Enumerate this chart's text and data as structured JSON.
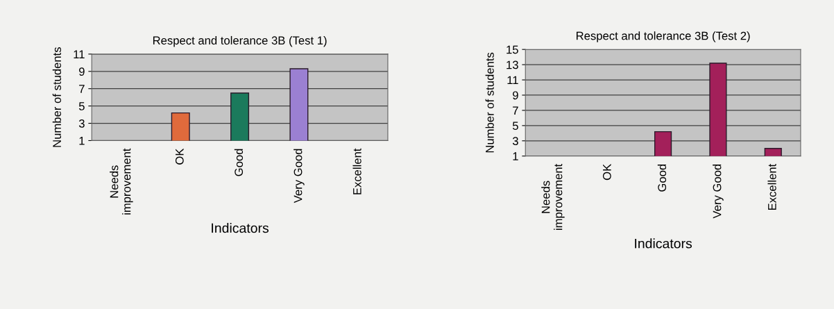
{
  "chart_data": [
    {
      "type": "bar",
      "title": "Respect and tolerance 3B (Test 1)",
      "xlabel": "Indicators",
      "ylabel": "Number of students",
      "categories": [
        "Needs\nimprovement",
        "OK",
        "Good",
        "Very Good",
        "Excellent"
      ],
      "values": [
        null,
        4.2,
        6.5,
        9.3,
        null
      ],
      "colors": [
        "#e06a3c",
        "#e06a3c",
        "#1b7a5c",
        "#9b80d2",
        "#9b80d2"
      ],
      "ylim": [
        1,
        11
      ],
      "yticks": [
        1,
        3,
        5,
        7,
        9,
        11
      ],
      "grid": "y",
      "legend": false
    },
    {
      "type": "bar",
      "title": "Respect and tolerance 3B (Test 2)",
      "xlabel": "Indicators",
      "ylabel": "Number of students",
      "categories": [
        "Needs\nimprovement",
        "OK",
        "Good",
        "Very Good",
        "Excellent"
      ],
      "values": [
        null,
        null,
        4.2,
        13.2,
        2
      ],
      "colors": [
        "#a3205a",
        "#a3205a",
        "#a3205a",
        "#a3205a",
        "#a3205a"
      ],
      "ylim": [
        1,
        15
      ],
      "yticks": [
        1,
        3,
        5,
        7,
        9,
        11,
        13,
        15
      ],
      "grid": "y",
      "legend": false
    }
  ]
}
